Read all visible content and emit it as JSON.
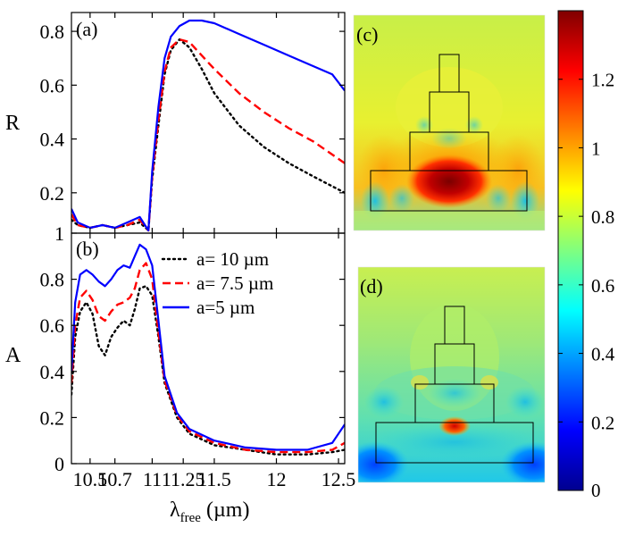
{
  "chart_data": [
    {
      "panel": "(a)",
      "type": "line",
      "ylabel": "R",
      "ylim": [
        0.05,
        0.87
      ],
      "yticks": [
        0.2,
        0.4,
        0.6,
        0.8
      ],
      "ytick_labels": [
        "0.2",
        "0.4",
        "0.6",
        "0.8"
      ],
      "xlim": [
        10.35,
        12.55
      ],
      "series": [
        {
          "name": "a= 10 µm",
          "color": "#000000",
          "style": "dotted",
          "points": [
            [
              10.35,
              0.1
            ],
            [
              10.4,
              0.08
            ],
            [
              10.5,
              0.07
            ],
            [
              10.6,
              0.08
            ],
            [
              10.7,
              0.07
            ],
            [
              10.8,
              0.08
            ],
            [
              10.9,
              0.09
            ],
            [
              10.97,
              0.06
            ],
            [
              11.0,
              0.25
            ],
            [
              11.05,
              0.45
            ],
            [
              11.1,
              0.64
            ],
            [
              11.15,
              0.73
            ],
            [
              11.22,
              0.77
            ],
            [
              11.3,
              0.74
            ],
            [
              11.4,
              0.66
            ],
            [
              11.5,
              0.57
            ],
            [
              11.7,
              0.45
            ],
            [
              11.9,
              0.37
            ],
            [
              12.1,
              0.31
            ],
            [
              12.3,
              0.26
            ],
            [
              12.55,
              0.2
            ]
          ]
        },
        {
          "name": "a= 7.5 µm",
          "color": "#ff0000",
          "style": "dashed",
          "points": [
            [
              10.35,
              0.12
            ],
            [
              10.4,
              0.08
            ],
            [
              10.5,
              0.07
            ],
            [
              10.6,
              0.08
            ],
            [
              10.7,
              0.07
            ],
            [
              10.8,
              0.08
            ],
            [
              10.9,
              0.1
            ],
            [
              10.97,
              0.06
            ],
            [
              11.0,
              0.26
            ],
            [
              11.05,
              0.47
            ],
            [
              11.1,
              0.65
            ],
            [
              11.15,
              0.74
            ],
            [
              11.22,
              0.77
            ],
            [
              11.3,
              0.76
            ],
            [
              11.4,
              0.71
            ],
            [
              11.5,
              0.66
            ],
            [
              11.7,
              0.57
            ],
            [
              11.9,
              0.5
            ],
            [
              12.1,
              0.44
            ],
            [
              12.3,
              0.39
            ],
            [
              12.55,
              0.31
            ]
          ]
        },
        {
          "name": "a=5 µm",
          "color": "#0000ff",
          "style": "solid",
          "points": [
            [
              10.35,
              0.14
            ],
            [
              10.4,
              0.09
            ],
            [
              10.5,
              0.07
            ],
            [
              10.6,
              0.08
            ],
            [
              10.7,
              0.07
            ],
            [
              10.8,
              0.09
            ],
            [
              10.9,
              0.11
            ],
            [
              10.97,
              0.06
            ],
            [
              11.0,
              0.28
            ],
            [
              11.05,
              0.52
            ],
            [
              11.1,
              0.7
            ],
            [
              11.15,
              0.78
            ],
            [
              11.22,
              0.82
            ],
            [
              11.3,
              0.84
            ],
            [
              11.4,
              0.84
            ],
            [
              11.5,
              0.83
            ],
            [
              11.7,
              0.79
            ],
            [
              11.9,
              0.75
            ],
            [
              12.1,
              0.71
            ],
            [
              12.3,
              0.67
            ],
            [
              12.45,
              0.64
            ],
            [
              12.55,
              0.58
            ]
          ]
        }
      ]
    },
    {
      "panel": "(b)",
      "type": "line",
      "ylabel": "A",
      "xlabel": "λfree (µm)",
      "xlabel_main": "λ",
      "xlabel_sub": "free",
      "xlabel_unit": " (µm)",
      "ylim": [
        0,
        1
      ],
      "yticks": [
        0,
        0.2,
        0.4,
        0.6,
        0.8,
        1
      ],
      "ytick_labels": [
        "0",
        "0.2",
        "0.4",
        "0.6",
        "0.8",
        "1"
      ],
      "xlim": [
        10.35,
        12.55
      ],
      "xticks": [
        10.5,
        10.7,
        11,
        11.25,
        11.5,
        12,
        12.5
      ],
      "xtick_labels": [
        "10.5",
        "10.7",
        "11",
        "11.25",
        "11.5",
        "12",
        "12.5"
      ],
      "series": [
        {
          "name": "a= 10 µm",
          "color": "#000000",
          "style": "dotted",
          "points": [
            [
              10.35,
              0.3
            ],
            [
              10.38,
              0.55
            ],
            [
              10.42,
              0.66
            ],
            [
              10.47,
              0.7
            ],
            [
              10.52,
              0.65
            ],
            [
              10.57,
              0.51
            ],
            [
              10.62,
              0.47
            ],
            [
              10.67,
              0.55
            ],
            [
              10.72,
              0.59
            ],
            [
              10.77,
              0.62
            ],
            [
              10.82,
              0.6
            ],
            [
              10.86,
              0.67
            ],
            [
              10.9,
              0.76
            ],
            [
              10.95,
              0.77
            ],
            [
              11.0,
              0.73
            ],
            [
              11.05,
              0.55
            ],
            [
              11.1,
              0.35
            ],
            [
              11.2,
              0.2
            ],
            [
              11.3,
              0.13
            ],
            [
              11.5,
              0.08
            ],
            [
              11.75,
              0.06
            ],
            [
              12.0,
              0.04
            ],
            [
              12.25,
              0.04
            ],
            [
              12.45,
              0.05
            ],
            [
              12.55,
              0.06
            ]
          ]
        },
        {
          "name": "a= 7.5 µm",
          "color": "#ff0000",
          "style": "dashed",
          "points": [
            [
              10.35,
              0.35
            ],
            [
              10.38,
              0.6
            ],
            [
              10.42,
              0.72
            ],
            [
              10.47,
              0.75
            ],
            [
              10.52,
              0.71
            ],
            [
              10.57,
              0.64
            ],
            [
              10.62,
              0.62
            ],
            [
              10.67,
              0.66
            ],
            [
              10.72,
              0.69
            ],
            [
              10.77,
              0.7
            ],
            [
              10.82,
              0.72
            ],
            [
              10.86,
              0.76
            ],
            [
              10.9,
              0.84
            ],
            [
              10.95,
              0.87
            ],
            [
              11.0,
              0.8
            ],
            [
              11.05,
              0.57
            ],
            [
              11.1,
              0.36
            ],
            [
              11.2,
              0.21
            ],
            [
              11.3,
              0.14
            ],
            [
              11.5,
              0.09
            ],
            [
              11.75,
              0.06
            ],
            [
              12.0,
              0.05
            ],
            [
              12.25,
              0.05
            ],
            [
              12.45,
              0.06
            ],
            [
              12.55,
              0.09
            ]
          ]
        },
        {
          "name": "a=5 µm",
          "color": "#0000ff",
          "style": "solid",
          "points": [
            [
              10.35,
              0.4
            ],
            [
              10.38,
              0.7
            ],
            [
              10.42,
              0.82
            ],
            [
              10.47,
              0.84
            ],
            [
              10.52,
              0.82
            ],
            [
              10.57,
              0.79
            ],
            [
              10.62,
              0.77
            ],
            [
              10.67,
              0.8
            ],
            [
              10.72,
              0.84
            ],
            [
              10.77,
              0.86
            ],
            [
              10.82,
              0.85
            ],
            [
              10.86,
              0.9
            ],
            [
              10.9,
              0.95
            ],
            [
              10.95,
              0.93
            ],
            [
              11.0,
              0.86
            ],
            [
              11.05,
              0.62
            ],
            [
              11.1,
              0.38
            ],
            [
              11.2,
              0.22
            ],
            [
              11.3,
              0.15
            ],
            [
              11.5,
              0.1
            ],
            [
              11.75,
              0.07
            ],
            [
              12.0,
              0.06
            ],
            [
              12.25,
              0.06
            ],
            [
              12.45,
              0.09
            ],
            [
              12.55,
              0.17
            ]
          ]
        }
      ]
    },
    {
      "panel": "(c)",
      "type": "heatmap",
      "description_free": true
    },
    {
      "panel": "(d)",
      "type": "heatmap",
      "description_free": true
    },
    {
      "type": "colorbar",
      "range": [
        0,
        1.4
      ],
      "ticks": [
        0,
        0.2,
        0.4,
        0.6,
        0.8,
        1,
        1.2
      ],
      "tick_labels": [
        "0",
        "0.2",
        "0.4",
        "0.6",
        "0.8",
        "1",
        "1.2"
      ]
    }
  ],
  "labels": {
    "panel_a": "(a)",
    "panel_b": "(b)",
    "panel_c": "(c)",
    "panel_d": "(d)",
    "r_axis": "R",
    "a_axis": "A",
    "x_main": "λ",
    "x_sub": "free",
    "x_unit": " (µm)"
  },
  "colors": {
    "black": "#000000",
    "red": "#ff0000",
    "blue": "#0000ff"
  }
}
